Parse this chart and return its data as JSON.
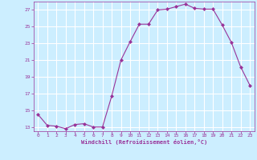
{
  "x": [
    0,
    1,
    2,
    3,
    4,
    5,
    6,
    7,
    8,
    9,
    10,
    11,
    12,
    13,
    14,
    15,
    16,
    17,
    18,
    19,
    20,
    21,
    22,
    23
  ],
  "y": [
    14.5,
    13.2,
    13.1,
    12.8,
    13.3,
    13.4,
    13.0,
    13.0,
    16.7,
    21.0,
    23.2,
    25.3,
    25.3,
    27.0,
    27.1,
    27.4,
    27.7,
    27.2,
    27.1,
    27.1,
    25.2,
    23.1,
    20.2,
    18.0
  ],
  "line_color": "#993399",
  "marker": "D",
  "marker_size": 2,
  "bg_color": "#cceeff",
  "grid_color": "#ffffff",
  "xlabel": "Windchill (Refroidissement éolien,°C)",
  "xlabel_color": "#993399",
  "tick_color": "#993399",
  "yticks": [
    13,
    15,
    17,
    19,
    21,
    23,
    25,
    27
  ],
  "xticks": [
    0,
    1,
    2,
    3,
    4,
    5,
    6,
    7,
    8,
    9,
    10,
    11,
    12,
    13,
    14,
    15,
    16,
    17,
    18,
    19,
    20,
    21,
    22,
    23
  ],
  "ylim": [
    12.5,
    28.0
  ],
  "xlim": [
    -0.5,
    23.5
  ]
}
